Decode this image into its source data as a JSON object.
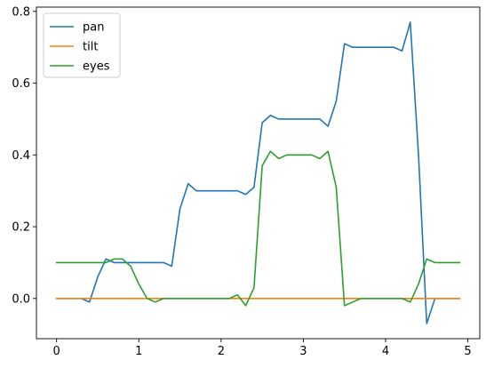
{
  "chart_data": {
    "type": "line",
    "title": "",
    "xlabel": "",
    "ylabel": "",
    "xlim": [
      -0.245,
      5.145
    ],
    "ylim": [
      -0.112,
      0.812
    ],
    "xticks": [
      0,
      1,
      2,
      3,
      4,
      5
    ],
    "yticks": [
      0.0,
      0.2,
      0.4,
      0.6,
      0.8
    ],
    "xtick_labels": [
      "0",
      "1",
      "2",
      "3",
      "4",
      "5"
    ],
    "ytick_labels": [
      "0.0",
      "0.2",
      "0.4",
      "0.6",
      "0.8"
    ],
    "grid": false,
    "legend_position": "upper-left",
    "x": [
      0.0,
      0.1,
      0.2,
      0.3,
      0.4,
      0.5,
      0.6,
      0.7,
      0.8,
      0.9,
      1.0,
      1.1,
      1.2,
      1.3,
      1.4,
      1.5,
      1.6,
      1.7,
      1.8,
      1.9,
      2.0,
      2.1,
      2.2,
      2.3,
      2.4,
      2.5,
      2.6,
      2.7,
      2.8,
      2.9,
      3.0,
      3.1,
      3.2,
      3.3,
      3.4,
      3.5,
      3.6,
      3.7,
      3.8,
      3.9,
      4.0,
      4.1,
      4.2,
      4.3,
      4.4,
      4.5,
      4.6,
      4.7,
      4.8,
      4.9
    ],
    "series": [
      {
        "name": "pan",
        "color": "#1f77b4",
        "values": [
          0.0,
          0.0,
          0.0,
          0.0,
          -0.01,
          0.06,
          0.11,
          0.1,
          0.1,
          0.1,
          0.1,
          0.1,
          0.1,
          0.1,
          0.09,
          0.25,
          0.32,
          0.3,
          0.3,
          0.3,
          0.3,
          0.3,
          0.3,
          0.29,
          0.31,
          0.49,
          0.51,
          0.5,
          0.5,
          0.5,
          0.5,
          0.5,
          0.5,
          0.48,
          0.55,
          0.71,
          0.7,
          0.7,
          0.7,
          0.7,
          0.7,
          0.7,
          0.69,
          0.77,
          0.4,
          -0.07,
          0.0,
          0.0,
          0.0,
          0.0
        ]
      },
      {
        "name": "tilt",
        "color": "#ff7f0e",
        "values": [
          0.0,
          0.0,
          0.0,
          0.0,
          0.0,
          0.0,
          0.0,
          0.0,
          0.0,
          0.0,
          0.0,
          0.0,
          0.0,
          0.0,
          0.0,
          0.0,
          0.0,
          0.0,
          0.0,
          0.0,
          0.0,
          0.0,
          0.0,
          0.0,
          0.0,
          0.0,
          0.0,
          0.0,
          0.0,
          0.0,
          0.0,
          0.0,
          0.0,
          0.0,
          0.0,
          0.0,
          0.0,
          0.0,
          0.0,
          0.0,
          0.0,
          0.0,
          0.0,
          0.0,
          0.0,
          0.0,
          0.0,
          0.0,
          0.0,
          0.0
        ]
      },
      {
        "name": "eyes",
        "color": "#2ca02c",
        "values": [
          0.1,
          0.1,
          0.1,
          0.1,
          0.1,
          0.1,
          0.1,
          0.11,
          0.11,
          0.09,
          0.04,
          0.0,
          -0.01,
          0.0,
          0.0,
          0.0,
          0.0,
          0.0,
          0.0,
          0.0,
          0.0,
          0.0,
          0.01,
          -0.02,
          0.03,
          0.37,
          0.41,
          0.39,
          0.4,
          0.4,
          0.4,
          0.4,
          0.39,
          0.41,
          0.31,
          -0.02,
          -0.01,
          0.0,
          0.0,
          0.0,
          0.0,
          0.0,
          0.0,
          -0.01,
          0.04,
          0.11,
          0.1,
          0.1,
          0.1,
          0.1
        ]
      }
    ]
  }
}
